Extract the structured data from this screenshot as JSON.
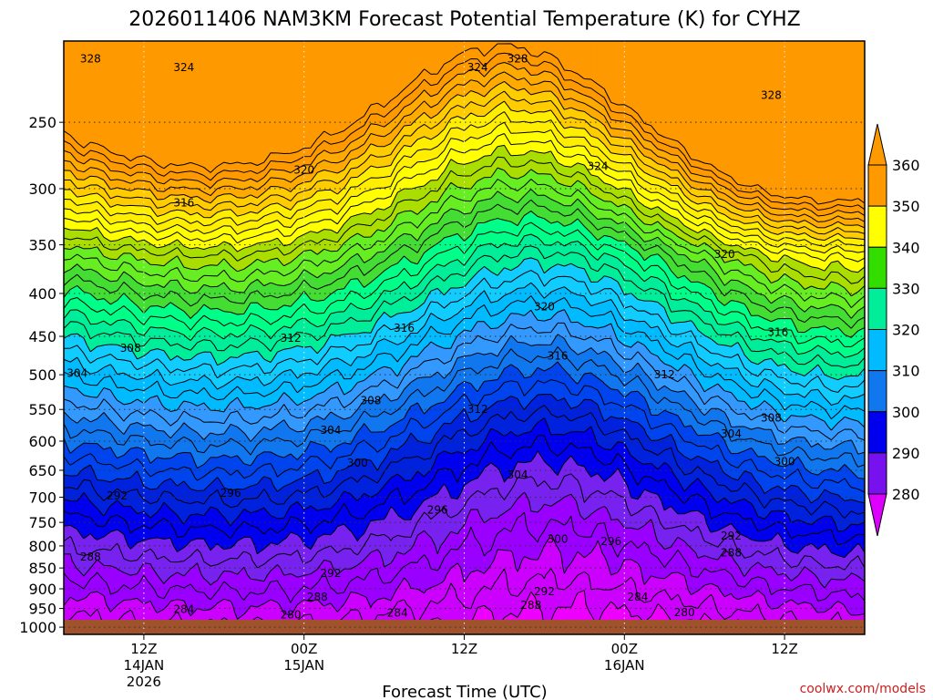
{
  "chart_data": {
    "type": "contour",
    "title": "2026011406 NAM3KM Forecast Potential Temperature (K) for CYHZ",
    "xlabel": "Forecast Time (UTC)",
    "ylabel": "",
    "y_scale": "pressure",
    "ylim": [
      1020,
      200
    ],
    "y_ticks": [
      250,
      300,
      350,
      400,
      450,
      500,
      550,
      600,
      650,
      700,
      750,
      800,
      850,
      900,
      950,
      1000
    ],
    "x_ticks": [
      {
        "label": "12Z",
        "sub1": "14JAN",
        "sub2": "2026"
      },
      {
        "label": "00Z",
        "sub1": "15JAN",
        "sub2": ""
      },
      {
        "label": "12Z",
        "sub1": "",
        "sub2": ""
      },
      {
        "label": "00Z",
        "sub1": "16JAN",
        "sub2": ""
      },
      {
        "label": "12Z",
        "sub1": "",
        "sub2": ""
      }
    ],
    "x_hours": [
      6,
      18,
      30,
      42,
      54
    ],
    "xlim_hours": [
      0,
      60
    ],
    "grid": true,
    "colorbar": {
      "labels": [
        "360",
        "350",
        "340",
        "330",
        "320",
        "310",
        "300",
        "290",
        "280"
      ],
      "bins": [
        {
          "from": 350,
          "to": 360,
          "color": "#ff9900"
        },
        {
          "from": 340,
          "to": 350,
          "color": "#ffff00"
        },
        {
          "from": 330,
          "to": 340,
          "color": "#33dd00"
        },
        {
          "from": 320,
          "to": 330,
          "color": "#00ee99"
        },
        {
          "from": 310,
          "to": 320,
          "color": "#00bbff"
        },
        {
          "from": 300,
          "to": 310,
          "color": "#1177ee"
        },
        {
          "from": 290,
          "to": 300,
          "color": "#0000ee"
        },
        {
          "from": 280,
          "to": 290,
          "color": "#7711ee"
        }
      ],
      "top_color": "#ff9900",
      "bottom_color": "#dd00ff"
    },
    "contour_interval": 2,
    "fill_interval": 4,
    "fill_colors": {
      "276": "#ee00ff",
      "280": "#cc00ff",
      "284": "#9900ff",
      "288": "#7722ee",
      "292": "#0000ee",
      "296": "#0022dd",
      "300": "#0044ee",
      "304": "#1177ee",
      "308": "#3399ff",
      "312": "#00bbff",
      "316": "#11ccff",
      "320": "#00ee99",
      "324": "#00ff88",
      "328": "#44dd33",
      "332": "#66ee22",
      "336": "#aadd00",
      "340": "#ffff00",
      "344": "#ffee00",
      "348": "#ffcc00",
      "352": "#ffaa00",
      "356": "#ff9900"
    },
    "ground_color": "#a0522d",
    "ground_pressure": 970,
    "contour_labels": [
      {
        "text": "328",
        "h": 2.0,
        "p": 210
      },
      {
        "text": "324",
        "h": 9.0,
        "p": 215
      },
      {
        "text": "324",
        "h": 31.0,
        "p": 215
      },
      {
        "text": "328",
        "h": 34.0,
        "p": 210
      },
      {
        "text": "328",
        "h": 53.0,
        "p": 232
      },
      {
        "text": "320",
        "h": 18.0,
        "p": 285
      },
      {
        "text": "324",
        "h": 40.0,
        "p": 282
      },
      {
        "text": "316",
        "h": 9.0,
        "p": 312
      },
      {
        "text": "320",
        "h": 49.5,
        "p": 359
      },
      {
        "text": "320",
        "h": 36.0,
        "p": 415
      },
      {
        "text": "316",
        "h": 25.5,
        "p": 440
      },
      {
        "text": "316",
        "h": 53.5,
        "p": 445
      },
      {
        "text": "312",
        "h": 17.0,
        "p": 452
      },
      {
        "text": "308",
        "h": 5.0,
        "p": 465
      },
      {
        "text": "316",
        "h": 37.0,
        "p": 475
      },
      {
        "text": "304",
        "h": 1.0,
        "p": 498
      },
      {
        "text": "312",
        "h": 45.0,
        "p": 500
      },
      {
        "text": "308",
        "h": 23.0,
        "p": 537
      },
      {
        "text": "312",
        "h": 31.0,
        "p": 550
      },
      {
        "text": "308",
        "h": 53.0,
        "p": 563
      },
      {
        "text": "304",
        "h": 20.0,
        "p": 582
      },
      {
        "text": "304",
        "h": 50.0,
        "p": 588
      },
      {
        "text": "300",
        "h": 22.0,
        "p": 637
      },
      {
        "text": "300",
        "h": 54.0,
        "p": 635
      },
      {
        "text": "304",
        "h": 34.0,
        "p": 658
      },
      {
        "text": "296",
        "h": 12.5,
        "p": 692
      },
      {
        "text": "292",
        "h": 4.0,
        "p": 697
      },
      {
        "text": "296",
        "h": 28.0,
        "p": 725
      },
      {
        "text": "300",
        "h": 37.0,
        "p": 785
      },
      {
        "text": "296",
        "h": 41.0,
        "p": 790
      },
      {
        "text": "292",
        "h": 50.0,
        "p": 778
      },
      {
        "text": "288",
        "h": 2.0,
        "p": 825
      },
      {
        "text": "288",
        "h": 50.0,
        "p": 815
      },
      {
        "text": "292",
        "h": 20.0,
        "p": 862
      },
      {
        "text": "292",
        "h": 36.0,
        "p": 907
      },
      {
        "text": "288",
        "h": 19.0,
        "p": 920
      },
      {
        "text": "284",
        "h": 43.0,
        "p": 920
      },
      {
        "text": "288",
        "h": 35.0,
        "p": 942
      },
      {
        "text": "284",
        "h": 9.0,
        "p": 952
      },
      {
        "text": "284",
        "h": 25.0,
        "p": 962
      },
      {
        "text": "280",
        "h": 17.0,
        "p": 966
      },
      {
        "text": "280",
        "h": 46.5,
        "p": 960
      }
    ]
  },
  "credit": "coolwx.com/models"
}
